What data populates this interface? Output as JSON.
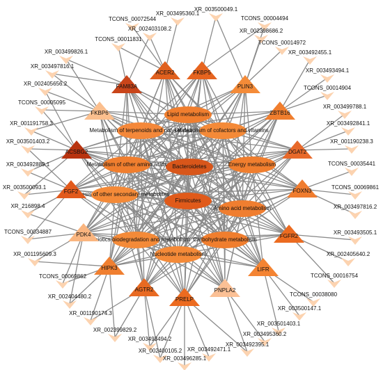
{
  "transcripts": [
    "XR_003500049.1",
    "XR_003495360.1",
    "TCONS_00004494",
    "TCONS_00072544",
    "XR_002403108.2",
    "XR_002398686.2",
    "TCONS_00011831",
    "TCONS_00014972",
    "XR_003499826.1",
    "XR_003492455.1",
    "XR_003497816.1",
    "XR_003493494.1",
    "XR_002405656.2",
    "TCONS_00014904",
    "TCONS_00005095",
    "XR_003499788.1",
    "XR_001191758.3",
    "XR_003492841.1",
    "XR_003501403.2",
    "XR_001190238.3",
    "XR_003492889.1",
    "TCONS_00035441",
    "XR_003500093.1",
    "TCONS_00069861",
    "XR_216898.4",
    "XR_003497816.2",
    "TCONS_00034887",
    "XR_003493505.1",
    "XR_001195609.3",
    "XR_002405640.2",
    "TCONS_00069862",
    "TCONS_00016754",
    "XR_002404480.2",
    "TCONS_00038080",
    "XR_001190174.3",
    "XR_003500147.1",
    "XR_002399829.2",
    "XR_003501403.1",
    "XR_003493494.2",
    "XR_003495360.2",
    "XR_002400105.2",
    "XR_003492471.1",
    "XR_003492395.1",
    "XR_003496285.1"
  ],
  "genes": [
    {
      "label": "ACER2",
      "color": "#e0601e"
    },
    {
      "label": "FKBP5",
      "color": "#e6641f"
    },
    {
      "label": "FAM83A",
      "color": "#c9451a"
    },
    {
      "label": "PLIN3",
      "color": "#f48b38"
    },
    {
      "label": "FKBP6",
      "color": "#fbbf8e"
    },
    {
      "label": "ZBTB16",
      "color": "#f07e2e"
    },
    {
      "label": "ACSBG2",
      "color": "#b8330f"
    },
    {
      "label": "DGAT2",
      "color": "#e8692a"
    },
    {
      "label": "FGF2",
      "color": "#e25a1c"
    },
    {
      "label": "FOXN3",
      "color": "#f07c2e"
    },
    {
      "label": "PDK4",
      "color": "#fab57f"
    },
    {
      "label": "FGFR2",
      "color": "#ec6b20"
    },
    {
      "label": "HIPK3",
      "color": "#f07f30"
    },
    {
      "label": "LIFR",
      "color": "#f48433"
    },
    {
      "label": "AGTR2",
      "color": "#e86a22"
    },
    {
      "label": "PRELP",
      "color": "#ec6b20"
    },
    {
      "label": "PNPLA2",
      "color": "#fbc095"
    }
  ],
  "pathways": [
    {
      "label": "Lipid metabolism",
      "color": "#f07e2e"
    },
    {
      "label": "Metabolism of terpenoids and polyketides",
      "color": "#f4883a"
    },
    {
      "label": "Metabolism of cofactors and vitamins",
      "color": "#f48a38"
    },
    {
      "label": "Bacteroidetes",
      "color": "#d8561a"
    },
    {
      "label": "Metabolism of other amino acids",
      "color": "#f07e2e"
    },
    {
      "label": "Energy metabolism",
      "color": "#f07e2e"
    },
    {
      "label": "Firmicutes",
      "color": "#e05a1a"
    },
    {
      "label": "Biosynthesis of other secondary metabolites",
      "color": "#f48a38"
    },
    {
      "label": "Amino acid metabolism",
      "color": "#f07e30"
    },
    {
      "label": "Xenobiotics biodegradation and metabolism",
      "color": "#f48a38"
    },
    {
      "label": "Carbohydrate metabolism",
      "color": "#f07e2e"
    },
    {
      "label": "Nucleotide metabolism",
      "color": "#f48a38"
    }
  ]
}
